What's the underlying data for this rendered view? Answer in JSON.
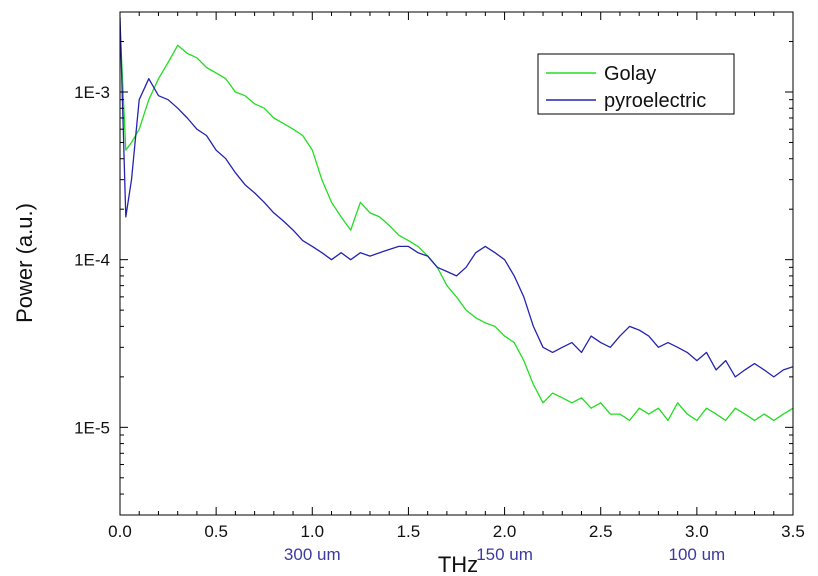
{
  "chart_data": {
    "type": "line",
    "title": "",
    "xlabel": "THz",
    "ylabel": "Power (a.u.)",
    "xlim": [
      0,
      3.5
    ],
    "ylim": [
      3e-06,
      0.003
    ],
    "yscale": "log",
    "grid": false,
    "legend_position": "top-right",
    "x_ticks": [
      {
        "value": 0.0,
        "label": "0.0"
      },
      {
        "value": 0.5,
        "label": "0.5"
      },
      {
        "value": 1.0,
        "label": "1.0"
      },
      {
        "value": 1.5,
        "label": "1.5"
      },
      {
        "value": 2.0,
        "label": "2.0"
      },
      {
        "value": 2.5,
        "label": "2.5"
      },
      {
        "value": 3.0,
        "label": "3.0"
      },
      {
        "value": 3.5,
        "label": "3.5"
      }
    ],
    "y_ticks": [
      {
        "value": 0.001,
        "label": "1E-3"
      },
      {
        "value": 0.0001,
        "label": "1E-4"
      },
      {
        "value": 1e-05,
        "label": "1E-5"
      }
    ],
    "secondary_x_labels": [
      {
        "value": 1.0,
        "label": "300 um"
      },
      {
        "value": 2.0,
        "label": "150 um"
      },
      {
        "value": 3.0,
        "label": "100 um"
      }
    ],
    "secondary_label_color": "#3a3aa0",
    "series": [
      {
        "name": "Golay",
        "color": "#22dd22",
        "x": [
          0.0,
          0.03,
          0.06,
          0.1,
          0.15,
          0.2,
          0.25,
          0.3,
          0.35,
          0.4,
          0.45,
          0.5,
          0.55,
          0.6,
          0.65,
          0.7,
          0.75,
          0.8,
          0.85,
          0.9,
          0.95,
          1.0,
          1.05,
          1.1,
          1.15,
          1.2,
          1.25,
          1.3,
          1.35,
          1.4,
          1.45,
          1.5,
          1.55,
          1.6,
          1.65,
          1.7,
          1.75,
          1.8,
          1.85,
          1.9,
          1.95,
          2.0,
          2.05,
          2.1,
          2.15,
          2.2,
          2.25,
          2.3,
          2.35,
          2.4,
          2.45,
          2.5,
          2.55,
          2.6,
          2.65,
          2.7,
          2.75,
          2.8,
          2.85,
          2.9,
          2.95,
          3.0,
          3.05,
          3.1,
          3.15,
          3.2,
          3.25,
          3.3,
          3.35,
          3.4,
          3.45,
          3.5
        ],
        "values": [
          0.0025,
          0.00045,
          0.0005,
          0.0006,
          0.0009,
          0.0012,
          0.0015,
          0.0019,
          0.0017,
          0.0016,
          0.0014,
          0.0013,
          0.0012,
          0.001,
          0.00095,
          0.00085,
          0.0008,
          0.0007,
          0.00065,
          0.0006,
          0.00055,
          0.00045,
          0.0003,
          0.00022,
          0.00018,
          0.00015,
          0.00022,
          0.00019,
          0.00018,
          0.00016,
          0.00014,
          0.00013,
          0.00012,
          0.000105,
          9e-05,
          7e-05,
          6e-05,
          5e-05,
          4.5e-05,
          4.2e-05,
          4e-05,
          3.5e-05,
          3.2e-05,
          2.5e-05,
          1.8e-05,
          1.4e-05,
          1.6e-05,
          1.5e-05,
          1.4e-05,
          1.5e-05,
          1.3e-05,
          1.4e-05,
          1.2e-05,
          1.2e-05,
          1.1e-05,
          1.3e-05,
          1.2e-05,
          1.3e-05,
          1.1e-05,
          1.4e-05,
          1.2e-05,
          1.1e-05,
          1.3e-05,
          1.2e-05,
          1.1e-05,
          1.3e-05,
          1.2e-05,
          1.1e-05,
          1.2e-05,
          1.1e-05,
          1.2e-05,
          1.3e-05
        ]
      },
      {
        "name": "pyroelectric",
        "color": "#2424b0",
        "x": [
          0.0,
          0.03,
          0.06,
          0.1,
          0.15,
          0.2,
          0.25,
          0.3,
          0.35,
          0.4,
          0.45,
          0.5,
          0.55,
          0.6,
          0.65,
          0.7,
          0.75,
          0.8,
          0.85,
          0.9,
          0.95,
          1.0,
          1.05,
          1.1,
          1.15,
          1.2,
          1.25,
          1.3,
          1.35,
          1.4,
          1.45,
          1.5,
          1.55,
          1.6,
          1.65,
          1.7,
          1.75,
          1.8,
          1.85,
          1.9,
          1.95,
          2.0,
          2.05,
          2.1,
          2.15,
          2.2,
          2.25,
          2.3,
          2.35,
          2.4,
          2.45,
          2.5,
          2.55,
          2.6,
          2.65,
          2.7,
          2.75,
          2.8,
          2.85,
          2.9,
          2.95,
          3.0,
          3.05,
          3.1,
          3.15,
          3.2,
          3.25,
          3.3,
          3.35,
          3.4,
          3.45,
          3.5
        ],
        "values": [
          0.0028,
          0.00018,
          0.0003,
          0.0009,
          0.0012,
          0.00095,
          0.0009,
          0.0008,
          0.0007,
          0.0006,
          0.00055,
          0.00045,
          0.0004,
          0.00033,
          0.00028,
          0.00025,
          0.00022,
          0.00019,
          0.00017,
          0.00015,
          0.00013,
          0.00012,
          0.00011,
          0.0001,
          0.00011,
          0.0001,
          0.00011,
          0.000105,
          0.00011,
          0.000115,
          0.00012,
          0.00012,
          0.00011,
          0.000105,
          9e-05,
          8.5e-05,
          8e-05,
          9e-05,
          0.00011,
          0.00012,
          0.00011,
          0.0001,
          8e-05,
          6e-05,
          4e-05,
          3e-05,
          2.8e-05,
          3e-05,
          3.2e-05,
          2.8e-05,
          3.5e-05,
          3.2e-05,
          3e-05,
          3.5e-05,
          4e-05,
          3.8e-05,
          3.5e-05,
          3e-05,
          3.2e-05,
          3e-05,
          2.8e-05,
          2.5e-05,
          2.8e-05,
          2.2e-05,
          2.5e-05,
          2e-05,
          2.2e-05,
          2.4e-05,
          2.2e-05,
          2e-05,
          2.2e-05,
          2.3e-05
        ]
      }
    ]
  }
}
